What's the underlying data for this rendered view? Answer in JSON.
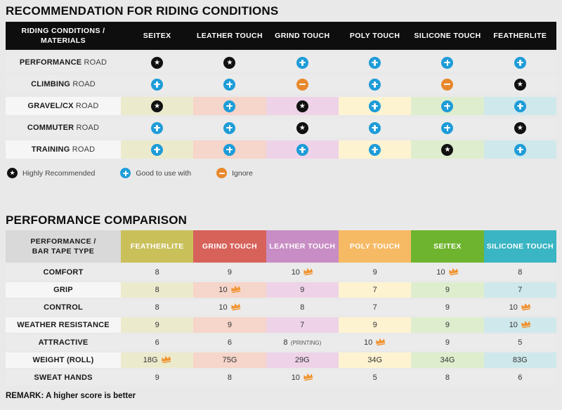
{
  "colors": {
    "page_bg": "#e9e9e9",
    "header_black": "#0e0e0e",
    "header2_label_bg": "#d9d9d9",
    "row_gray": "#ebebeb",
    "row_label_light": "#f6f6f6",
    "column_tints": [
      "#eceacd",
      "#f6d5ca",
      "#eed3e8",
      "#fdf3d1",
      "#deedcd",
      "#cfe8eb"
    ],
    "icon_star_bg": "#111111",
    "icon_plus_bg": "#1e9cd8",
    "icon_minus_bg": "#e8882c",
    "crown": "#f0922f"
  },
  "section1": {
    "title": "RECOMMENDATION FOR RIDING CONDITIONS",
    "header": {
      "label_line1": "RIDING CONDITIONS /",
      "label_line2": "MATERIALS",
      "columns": [
        "SEITEX",
        "LEATHER TOUCH",
        "GRIND TOUCH",
        "POLY TOUCH",
        "SILICONE TOUCH",
        "FEATHERLITE"
      ]
    },
    "rows": [
      {
        "label_strong": "PERFORMANCE",
        "label_rest": "ROAD",
        "tinted": false,
        "cells": [
          "star",
          "star",
          "plus",
          "plus",
          "plus",
          "plus"
        ]
      },
      {
        "label_strong": "CLIMBING",
        "label_rest": "ROAD",
        "tinted": false,
        "cells": [
          "plus",
          "plus",
          "minus",
          "plus",
          "minus",
          "star"
        ]
      },
      {
        "label_strong": "GRAVEL/CX",
        "label_rest": "ROAD",
        "tinted": true,
        "cells": [
          "star",
          "plus",
          "star",
          "plus",
          "plus",
          "plus"
        ]
      },
      {
        "label_strong": "COMMUTER",
        "label_rest": "ROAD",
        "tinted": false,
        "cells": [
          "plus",
          "plus",
          "star",
          "plus",
          "plus",
          "star"
        ]
      },
      {
        "label_strong": "TRAINING",
        "label_rest": "ROAD",
        "tinted": true,
        "cells": [
          "plus",
          "plus",
          "plus",
          "plus",
          "star",
          "plus"
        ]
      }
    ],
    "legend": [
      {
        "icon": "star",
        "label": "Highly Recommended"
      },
      {
        "icon": "plus",
        "label": "Good to use with"
      },
      {
        "icon": "minus",
        "label": "Ignore"
      }
    ]
  },
  "section2": {
    "title": "PERFORMANCE COMPARISON",
    "header": {
      "label_line1": "PERFORMANCE /",
      "label_line2": "BAR TAPE TYPE",
      "columns": [
        {
          "label": "FEATHERLITE",
          "color": "#c9c05a"
        },
        {
          "label": "GRIND TOUCH",
          "color": "#d7625a"
        },
        {
          "label": "LEATHER TOUCH",
          "color": "#c88dc4"
        },
        {
          "label": "POLY TOUCH",
          "color": "#f6b964"
        },
        {
          "label": "SEITEX",
          "color": "#6eb42e"
        },
        {
          "label": "SILICONE TOUCH",
          "color": "#39b5c3"
        }
      ]
    },
    "rows": [
      {
        "label": "COMFORT",
        "tinted": false,
        "cells": [
          {
            "v": "8"
          },
          {
            "v": "9"
          },
          {
            "v": "10",
            "crown": true
          },
          {
            "v": "9"
          },
          {
            "v": "10",
            "crown": true
          },
          {
            "v": "8"
          }
        ]
      },
      {
        "label": "GRIP",
        "tinted": true,
        "cells": [
          {
            "v": "8"
          },
          {
            "v": "10",
            "crown": true
          },
          {
            "v": "9"
          },
          {
            "v": "7"
          },
          {
            "v": "9"
          },
          {
            "v": "7"
          }
        ]
      },
      {
        "label": "CONTROL",
        "tinted": false,
        "cells": [
          {
            "v": "8"
          },
          {
            "v": "10",
            "crown": true
          },
          {
            "v": "8"
          },
          {
            "v": "7"
          },
          {
            "v": "9"
          },
          {
            "v": "10",
            "crown": true
          }
        ]
      },
      {
        "label": "WEATHER RESISTANCE",
        "tinted": true,
        "cells": [
          {
            "v": "9"
          },
          {
            "v": "9"
          },
          {
            "v": "7"
          },
          {
            "v": "9"
          },
          {
            "v": "9"
          },
          {
            "v": "10",
            "crown": true
          }
        ]
      },
      {
        "label": "ATTRACTIVE",
        "tinted": false,
        "cells": [
          {
            "v": "6"
          },
          {
            "v": "6"
          },
          {
            "v": "8",
            "note": "(PRINTING)"
          },
          {
            "v": "10",
            "crown": true
          },
          {
            "v": "9"
          },
          {
            "v": "5"
          }
        ]
      },
      {
        "label": "WEIGHT (ROLL)",
        "tinted": true,
        "cells": [
          {
            "v": "18G",
            "crown": true
          },
          {
            "v": "75G"
          },
          {
            "v": "29G"
          },
          {
            "v": "34G"
          },
          {
            "v": "34G"
          },
          {
            "v": "83G"
          }
        ]
      },
      {
        "label": "SWEAT HANDS",
        "tinted": false,
        "cells": [
          {
            "v": "9"
          },
          {
            "v": "8"
          },
          {
            "v": "10",
            "crown": true
          },
          {
            "v": "5"
          },
          {
            "v": "8"
          },
          {
            "v": "6"
          }
        ]
      }
    ],
    "remark": "REMARK: A higher score is better"
  }
}
